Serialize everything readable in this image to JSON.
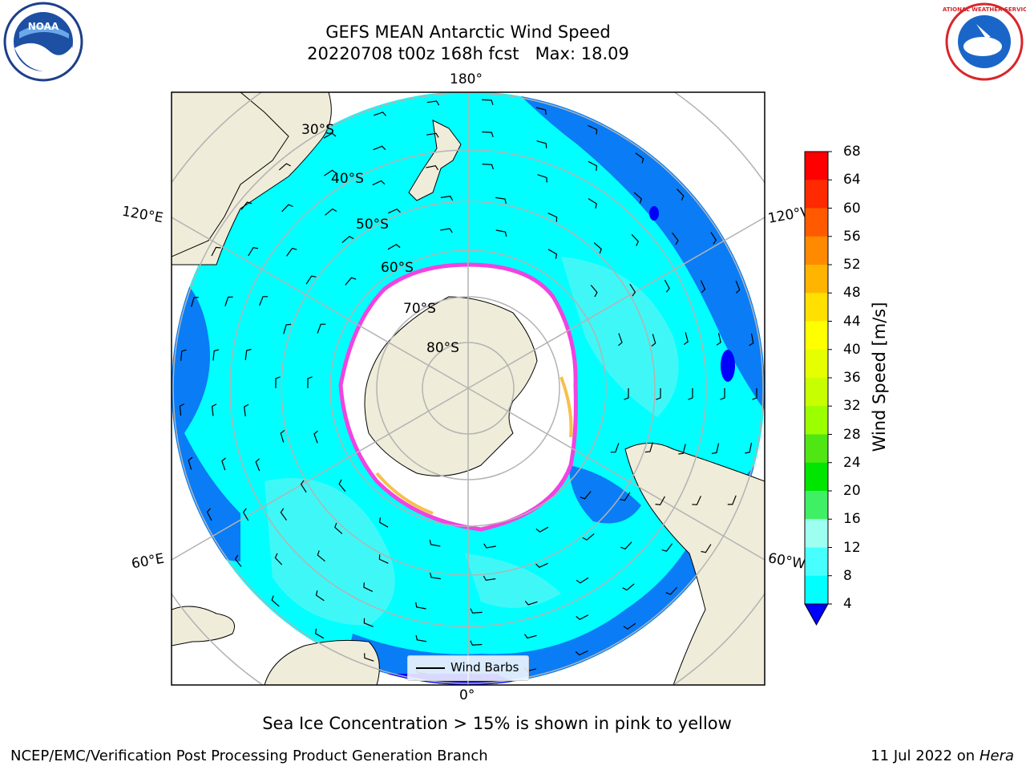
{
  "title": {
    "line1": "GEFS MEAN Antarctic Wind Speed",
    "line2": "20220708 t00z 168h fcst   Max: 18.09"
  },
  "map": {
    "projection": "south-polar-stereographic",
    "longitude_labels": [
      "180°",
      "120°E",
      "120°W",
      "60°E",
      "60°W",
      "0°"
    ],
    "latitude_labels": [
      "30°S",
      "40°S",
      "50°S",
      "60°S",
      "70°S",
      "80°S"
    ],
    "colors": {
      "ocean_4_8": "#0a7cf6",
      "ocean_8_12": "#00ffff",
      "ocean_12_16": "#40f7f7",
      "land": "#efecd9",
      "sea_ice_edge": "#f044e0",
      "sea_ice_yellow": "#f7c04a"
    }
  },
  "legend": {
    "label": "Wind Barbs"
  },
  "colorbar": {
    "label": "Wind Speed [m/s]",
    "ticks": [
      "68",
      "64",
      "60",
      "56",
      "52",
      "48",
      "44",
      "40",
      "36",
      "32",
      "28",
      "24",
      "20",
      "16",
      "12",
      "8",
      "4"
    ],
    "colors": [
      "#ff0000",
      "#ff2a00",
      "#ff5a00",
      "#ff8a00",
      "#ffb400",
      "#ffe000",
      "#ffff00",
      "#e6ff00",
      "#c8ff00",
      "#9cff00",
      "#50e614",
      "#00e600",
      "#40f064",
      "#9cfff0",
      "#48ffff",
      "#00ffff",
      "#0a7cf6"
    ],
    "extend_color": "#0000ff"
  },
  "subtitle": "Sea Ice Concentration > 15% is shown in pink to yellow",
  "footer": {
    "left": "NCEP/EMC/Verification Post Processing Product Generation Branch",
    "date": "11 Jul 2022 on ",
    "host": "Hera"
  },
  "logos": {
    "noaa": "NOAA",
    "nws": "NATIONAL WEATHER SERVICE"
  }
}
